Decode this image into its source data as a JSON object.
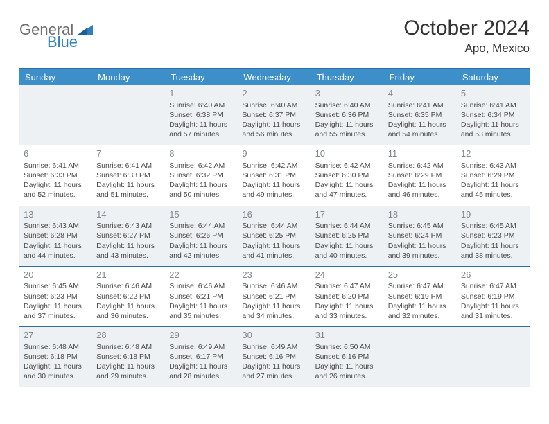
{
  "logo": {
    "word1": "General",
    "word2": "Blue"
  },
  "title": "October 2024",
  "location": "Apo, Mexico",
  "colors": {
    "header_bg": "#3d8fc9",
    "header_border": "#2f6fa5",
    "shaded_cell": "#eef1f3",
    "text": "#333333",
    "daynum": "#808890",
    "logo_gray": "#6e6e6e",
    "logo_blue": "#2f7fbf"
  },
  "day_names": [
    "Sunday",
    "Monday",
    "Tuesday",
    "Wednesday",
    "Thursday",
    "Friday",
    "Saturday"
  ],
  "weeks": [
    [
      {
        "day": "",
        "sunrise": "",
        "sunset": "",
        "daylight": ""
      },
      {
        "day": "",
        "sunrise": "",
        "sunset": "",
        "daylight": ""
      },
      {
        "day": "1",
        "sunrise": "Sunrise: 6:40 AM",
        "sunset": "Sunset: 6:38 PM",
        "daylight": "Daylight: 11 hours and 57 minutes."
      },
      {
        "day": "2",
        "sunrise": "Sunrise: 6:40 AM",
        "sunset": "Sunset: 6:37 PM",
        "daylight": "Daylight: 11 hours and 56 minutes."
      },
      {
        "day": "3",
        "sunrise": "Sunrise: 6:40 AM",
        "sunset": "Sunset: 6:36 PM",
        "daylight": "Daylight: 11 hours and 55 minutes."
      },
      {
        "day": "4",
        "sunrise": "Sunrise: 6:41 AM",
        "sunset": "Sunset: 6:35 PM",
        "daylight": "Daylight: 11 hours and 54 minutes."
      },
      {
        "day": "5",
        "sunrise": "Sunrise: 6:41 AM",
        "sunset": "Sunset: 6:34 PM",
        "daylight": "Daylight: 11 hours and 53 minutes."
      }
    ],
    [
      {
        "day": "6",
        "sunrise": "Sunrise: 6:41 AM",
        "sunset": "Sunset: 6:33 PM",
        "daylight": "Daylight: 11 hours and 52 minutes."
      },
      {
        "day": "7",
        "sunrise": "Sunrise: 6:41 AM",
        "sunset": "Sunset: 6:33 PM",
        "daylight": "Daylight: 11 hours and 51 minutes."
      },
      {
        "day": "8",
        "sunrise": "Sunrise: 6:42 AM",
        "sunset": "Sunset: 6:32 PM",
        "daylight": "Daylight: 11 hours and 50 minutes."
      },
      {
        "day": "9",
        "sunrise": "Sunrise: 6:42 AM",
        "sunset": "Sunset: 6:31 PM",
        "daylight": "Daylight: 11 hours and 49 minutes."
      },
      {
        "day": "10",
        "sunrise": "Sunrise: 6:42 AM",
        "sunset": "Sunset: 6:30 PM",
        "daylight": "Daylight: 11 hours and 47 minutes."
      },
      {
        "day": "11",
        "sunrise": "Sunrise: 6:42 AM",
        "sunset": "Sunset: 6:29 PM",
        "daylight": "Daylight: 11 hours and 46 minutes."
      },
      {
        "day": "12",
        "sunrise": "Sunrise: 6:43 AM",
        "sunset": "Sunset: 6:29 PM",
        "daylight": "Daylight: 11 hours and 45 minutes."
      }
    ],
    [
      {
        "day": "13",
        "sunrise": "Sunrise: 6:43 AM",
        "sunset": "Sunset: 6:28 PM",
        "daylight": "Daylight: 11 hours and 44 minutes."
      },
      {
        "day": "14",
        "sunrise": "Sunrise: 6:43 AM",
        "sunset": "Sunset: 6:27 PM",
        "daylight": "Daylight: 11 hours and 43 minutes."
      },
      {
        "day": "15",
        "sunrise": "Sunrise: 6:44 AM",
        "sunset": "Sunset: 6:26 PM",
        "daylight": "Daylight: 11 hours and 42 minutes."
      },
      {
        "day": "16",
        "sunrise": "Sunrise: 6:44 AM",
        "sunset": "Sunset: 6:25 PM",
        "daylight": "Daylight: 11 hours and 41 minutes."
      },
      {
        "day": "17",
        "sunrise": "Sunrise: 6:44 AM",
        "sunset": "Sunset: 6:25 PM",
        "daylight": "Daylight: 11 hours and 40 minutes."
      },
      {
        "day": "18",
        "sunrise": "Sunrise: 6:45 AM",
        "sunset": "Sunset: 6:24 PM",
        "daylight": "Daylight: 11 hours and 39 minutes."
      },
      {
        "day": "19",
        "sunrise": "Sunrise: 6:45 AM",
        "sunset": "Sunset: 6:23 PM",
        "daylight": "Daylight: 11 hours and 38 minutes."
      }
    ],
    [
      {
        "day": "20",
        "sunrise": "Sunrise: 6:45 AM",
        "sunset": "Sunset: 6:23 PM",
        "daylight": "Daylight: 11 hours and 37 minutes."
      },
      {
        "day": "21",
        "sunrise": "Sunrise: 6:46 AM",
        "sunset": "Sunset: 6:22 PM",
        "daylight": "Daylight: 11 hours and 36 minutes."
      },
      {
        "day": "22",
        "sunrise": "Sunrise: 6:46 AM",
        "sunset": "Sunset: 6:21 PM",
        "daylight": "Daylight: 11 hours and 35 minutes."
      },
      {
        "day": "23",
        "sunrise": "Sunrise: 6:46 AM",
        "sunset": "Sunset: 6:21 PM",
        "daylight": "Daylight: 11 hours and 34 minutes."
      },
      {
        "day": "24",
        "sunrise": "Sunrise: 6:47 AM",
        "sunset": "Sunset: 6:20 PM",
        "daylight": "Daylight: 11 hours and 33 minutes."
      },
      {
        "day": "25",
        "sunrise": "Sunrise: 6:47 AM",
        "sunset": "Sunset: 6:19 PM",
        "daylight": "Daylight: 11 hours and 32 minutes."
      },
      {
        "day": "26",
        "sunrise": "Sunrise: 6:47 AM",
        "sunset": "Sunset: 6:19 PM",
        "daylight": "Daylight: 11 hours and 31 minutes."
      }
    ],
    [
      {
        "day": "27",
        "sunrise": "Sunrise: 6:48 AM",
        "sunset": "Sunset: 6:18 PM",
        "daylight": "Daylight: 11 hours and 30 minutes."
      },
      {
        "day": "28",
        "sunrise": "Sunrise: 6:48 AM",
        "sunset": "Sunset: 6:18 PM",
        "daylight": "Daylight: 11 hours and 29 minutes."
      },
      {
        "day": "29",
        "sunrise": "Sunrise: 6:49 AM",
        "sunset": "Sunset: 6:17 PM",
        "daylight": "Daylight: 11 hours and 28 minutes."
      },
      {
        "day": "30",
        "sunrise": "Sunrise: 6:49 AM",
        "sunset": "Sunset: 6:16 PM",
        "daylight": "Daylight: 11 hours and 27 minutes."
      },
      {
        "day": "31",
        "sunrise": "Sunrise: 6:50 AM",
        "sunset": "Sunset: 6:16 PM",
        "daylight": "Daylight: 11 hours and 26 minutes."
      },
      {
        "day": "",
        "sunrise": "",
        "sunset": "",
        "daylight": ""
      },
      {
        "day": "",
        "sunrise": "",
        "sunset": "",
        "daylight": ""
      }
    ]
  ]
}
